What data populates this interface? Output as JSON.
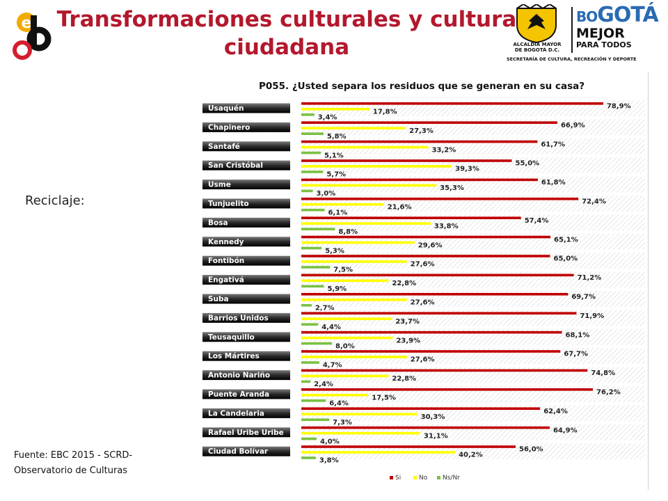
{
  "header": {
    "title_line1": "Transformaciones culturales y cultura",
    "title_line2": "ciudadana"
  },
  "logos": {
    "gov_line1": "ALCALDÍA MAYOR",
    "gov_line2": "DE BOGOTÁ D.C.",
    "gov_bogota_a": "BO",
    "gov_bogota_b": "GO",
    "gov_bogota_c": "TÁ",
    "gov_mejor": "MEJOR",
    "gov_para": "PARA TODOS",
    "gov_secretaria": "SECRETARÍA DE CULTURA, RECREACIÓN Y DEPORTE"
  },
  "side_label": "Reciclaje:",
  "source": {
    "line1": "Fuente: EBC  2015 - SCRD-",
    "line2": "Observatorio de Culturas"
  },
  "chart_data": {
    "type": "bar",
    "orientation": "horizontal",
    "title": "P055. ¿Usted separa los residuos que se generan en su casa?",
    "categories": [
      "Usaquén",
      "Chapinero",
      "Santafé",
      "San Cristóbal",
      "Usme",
      "Tunjuelito",
      "Bosa",
      "Kennedy",
      "Fontibón",
      "Engativá",
      "Suba",
      "Barrios Unidos",
      "Teusaquillo",
      "Los Mártires",
      "Antonio Nariño",
      "Puente Aranda",
      "La Candelaria",
      "Rafael Uribe Uribe",
      "Ciudad Bolívar"
    ],
    "series": [
      {
        "name": "Si",
        "color": "#c00000",
        "values": [
          78.9,
          66.9,
          61.7,
          55.0,
          61.8,
          72.4,
          57.4,
          65.1,
          65.0,
          71.2,
          69.7,
          71.9,
          68.1,
          67.7,
          74.8,
          76.2,
          62.4,
          64.9,
          56.0
        ],
        "labels": [
          "78,9%",
          "66,9%",
          "61,7%",
          "55,0%",
          "61,8%",
          "72,4%",
          "57,4%",
          "65,1%",
          "65,0%",
          "71,2%",
          "69,7%",
          "71,9%",
          "68,1%",
          "67,7%",
          "74,8%",
          "76,2%",
          "62,4%",
          "64,9%",
          "56,0%"
        ]
      },
      {
        "name": "No",
        "color": "#ffff00",
        "values": [
          17.8,
          27.3,
          33.2,
          39.3,
          35.3,
          21.6,
          33.8,
          29.6,
          27.6,
          22.8,
          27.6,
          23.7,
          23.9,
          27.6,
          22.8,
          17.5,
          30.3,
          31.1,
          40.2
        ],
        "labels": [
          "17,8%",
          "27,3%",
          "33,2%",
          "39,3%",
          "35,3%",
          "21,6%",
          "33,8%",
          "29,6%",
          "27,6%",
          "22,8%",
          "27,6%",
          "23,7%",
          "23,9%",
          "27,6%",
          "22,8%",
          "17,5%",
          "30,3%",
          "31,1%",
          "40,2%"
        ]
      },
      {
        "name": "Ns/Nr",
        "color": "#7ac142",
        "values": [
          3.4,
          5.8,
          5.1,
          5.7,
          3.0,
          6.1,
          8.8,
          5.3,
          7.5,
          5.9,
          2.7,
          4.4,
          8.0,
          4.7,
          2.4,
          6.4,
          7.3,
          4.0,
          3.8
        ],
        "labels": [
          "3,4%",
          "5,8%",
          "5,1%",
          "5,7%",
          "3,0%",
          "6,1%",
          "8,8%",
          "5,3%",
          "7,5%",
          "5,9%",
          "2,7%",
          "4,4%",
          "8,0%",
          "4,7%",
          "2,4%",
          "6,4%",
          "7,3%",
          "4,0%",
          "3,8%"
        ]
      }
    ],
    "xlim": [
      0,
      100
    ],
    "grid": false,
    "legend": "bottom"
  }
}
